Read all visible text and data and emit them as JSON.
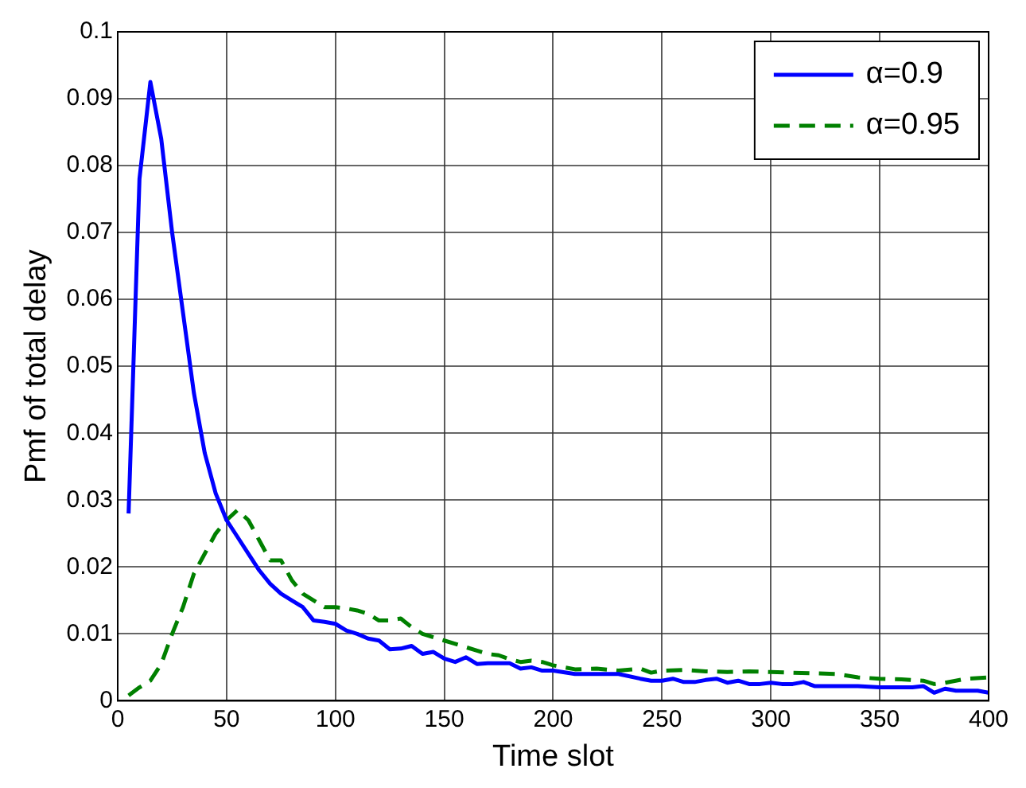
{
  "chart_data": {
    "type": "line",
    "xlabel": "Time slot",
    "ylabel": "Pmf of total delay",
    "xlim": [
      0,
      400
    ],
    "xticks": [
      0,
      50,
      100,
      150,
      200,
      250,
      300,
      350,
      400
    ],
    "ylim": [
      0,
      0.1
    ],
    "yticks": [
      0,
      0.01,
      0.02,
      0.03,
      0.04,
      0.05,
      0.06,
      0.07,
      0.08,
      0.09,
      0.1
    ],
    "grid": true,
    "legend": "top right",
    "marker": "none",
    "series": [
      {
        "name": "α=0.9",
        "color": "#0000ff",
        "line_style": "solid",
        "x": [
          5,
          10,
          15,
          20,
          25,
          30,
          35,
          40,
          45,
          50,
          55,
          60,
          65,
          70,
          75,
          80,
          85,
          90,
          95,
          100,
          105,
          110,
          115,
          120,
          125,
          130,
          135,
          140,
          145,
          150,
          155,
          160,
          165,
          170,
          175,
          180,
          185,
          190,
          195,
          200,
          210,
          220,
          230,
          240,
          245,
          250,
          255,
          260,
          265,
          270,
          275,
          280,
          285,
          290,
          295,
          300,
          305,
          310,
          315,
          320,
          330,
          340,
          350,
          360,
          365,
          370,
          375,
          380,
          385,
          390,
          395,
          400
        ],
        "values": [
          0.028,
          0.078,
          0.0925,
          0.084,
          0.07,
          0.058,
          0.046,
          0.037,
          0.031,
          0.027,
          0.0245,
          0.022,
          0.0195,
          0.0175,
          0.016,
          0.015,
          0.014,
          0.012,
          0.0118,
          0.0115,
          0.0105,
          0.01,
          0.0093,
          0.009,
          0.0077,
          0.0078,
          0.0082,
          0.007,
          0.0073,
          0.0063,
          0.0058,
          0.0065,
          0.0055,
          0.0056,
          0.0056,
          0.0056,
          0.0048,
          0.005,
          0.0045,
          0.0045,
          0.004,
          0.004,
          0.004,
          0.0033,
          0.003,
          0.003,
          0.0033,
          0.0028,
          0.0028,
          0.0031,
          0.0033,
          0.0027,
          0.003,
          0.0025,
          0.0025,
          0.0027,
          0.0025,
          0.0025,
          0.0028,
          0.0022,
          0.0022,
          0.0022,
          0.002,
          0.002,
          0.002,
          0.0022,
          0.0012,
          0.0018,
          0.0015,
          0.0015,
          0.0015,
          0.0012
        ]
      },
      {
        "name": "α=0.95",
        "color": "#008000",
        "line_style": "dashed",
        "x": [
          5,
          10,
          15,
          20,
          25,
          30,
          35,
          40,
          45,
          50,
          55,
          60,
          65,
          70,
          75,
          80,
          85,
          90,
          95,
          100,
          105,
          110,
          115,
          120,
          125,
          130,
          135,
          140,
          145,
          150,
          155,
          160,
          165,
          170,
          175,
          180,
          185,
          190,
          195,
          200,
          210,
          220,
          230,
          240,
          245,
          250,
          260,
          270,
          280,
          290,
          300,
          310,
          320,
          330,
          340,
          350,
          360,
          370,
          375,
          380,
          390,
          400
        ],
        "values": [
          0.0008,
          0.002,
          0.003,
          0.0055,
          0.01,
          0.014,
          0.019,
          0.022,
          0.025,
          0.027,
          0.0285,
          0.027,
          0.024,
          0.021,
          0.021,
          0.018,
          0.016,
          0.015,
          0.014,
          0.014,
          0.0138,
          0.0135,
          0.013,
          0.012,
          0.012,
          0.0123,
          0.011,
          0.01,
          0.0095,
          0.009,
          0.0085,
          0.008,
          0.0075,
          0.007,
          0.0068,
          0.0062,
          0.0058,
          0.006,
          0.0058,
          0.0053,
          0.0047,
          0.0048,
          0.0045,
          0.0048,
          0.0042,
          0.0045,
          0.0046,
          0.0044,
          0.0043,
          0.0044,
          0.0043,
          0.0042,
          0.0041,
          0.004,
          0.0035,
          0.0033,
          0.0032,
          0.003,
          0.0025,
          0.0027,
          0.0033,
          0.0035
        ]
      }
    ]
  }
}
